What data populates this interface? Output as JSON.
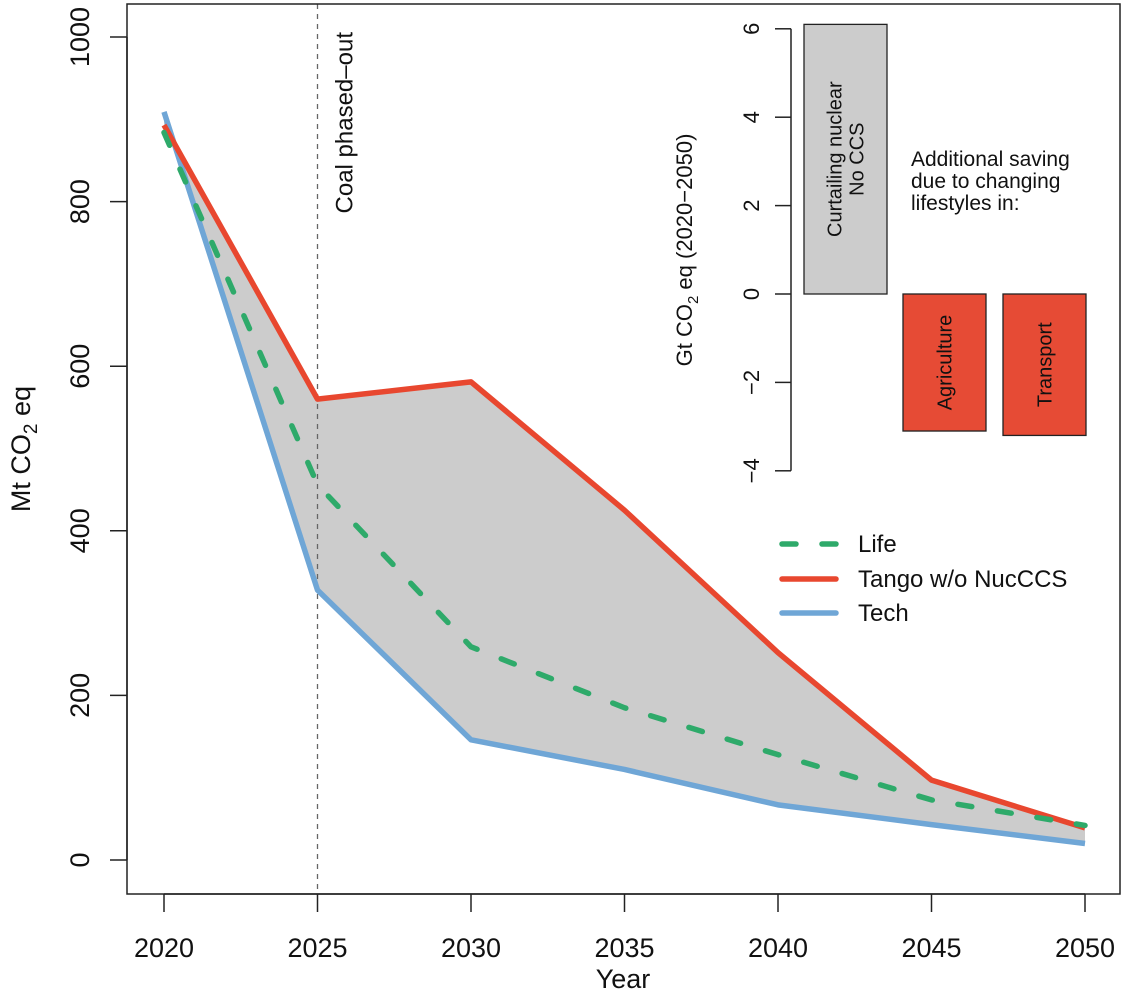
{
  "chart_data": {
    "type": "line",
    "title": "",
    "xlabel": "Year",
    "ylabel": "Mt CO2 eq",
    "ylabel_parts": {
      "pre": "Mt CO",
      "sub": "2",
      "post": " eq"
    },
    "x": [
      2020,
      2025,
      2030,
      2035,
      2040,
      2045,
      2050
    ],
    "xticks": [
      "2020",
      "2025",
      "2030",
      "2035",
      "2040",
      "2045",
      "2050"
    ],
    "yticks": [
      "0",
      "200",
      "400",
      "600",
      "800",
      "1000"
    ],
    "ytick_values": [
      0,
      200,
      400,
      600,
      800,
      1000
    ],
    "xlim": [
      2019,
      2051.2
    ],
    "ylim": [
      -40,
      1040
    ],
    "grid": false,
    "legend_position": "right-middle",
    "band": {
      "between": [
        "Tango w/o NucCCS",
        "Tech"
      ],
      "color": "#cccccc"
    },
    "series": [
      {
        "name": "Life",
        "style": "dashed",
        "color": "#2eaa6a",
        "values": [
          884,
          456,
          259,
          185,
          128,
          73,
          42
        ]
      },
      {
        "name": "Tango w/o NucCCS",
        "style": "solid",
        "color": "#e8472f",
        "values": [
          893,
          560,
          581,
          425,
          252,
          97,
          39
        ]
      },
      {
        "name": "Tech",
        "style": "solid",
        "color": "#6fa6d6",
        "values": [
          909,
          328,
          146,
          110,
          67,
          43,
          20
        ]
      }
    ],
    "vline": {
      "x": 2025,
      "label": "Coal phased–out",
      "style": "dashed"
    },
    "inset": {
      "type": "bar",
      "ylabel_parts": {
        "pre": "Gt CO",
        "sub": "2",
        "post": " eq (2020−2050)"
      },
      "yticks": [
        "−4",
        "−2",
        "0",
        "2",
        "4",
        "6"
      ],
      "ytick_values": [
        -4,
        -2,
        0,
        2,
        4,
        6
      ],
      "ylim": [
        -4,
        6
      ],
      "note_lines": [
        "Additional saving",
        "due to changing",
        "lifestyles in:"
      ],
      "bars": [
        {
          "label_lines": [
            "Curtailing nuclear",
            "No CCS"
          ],
          "value": 6.1,
          "color": "#cccccc"
        },
        {
          "label_lines": [
            "Agriculture"
          ],
          "value": -3.1,
          "color": "#e64b35"
        },
        {
          "label_lines": [
            "Transport"
          ],
          "value": -3.2,
          "color": "#e64b35"
        }
      ]
    }
  }
}
